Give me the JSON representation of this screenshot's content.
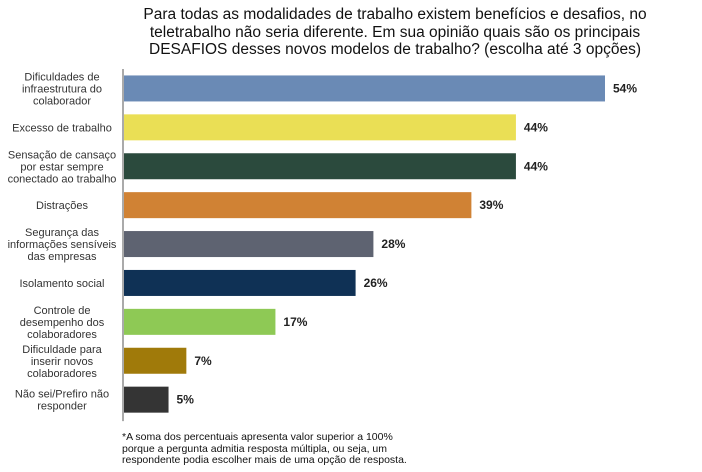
{
  "chart_data": {
    "type": "bar",
    "orientation": "horizontal",
    "title_lines": [
      "Para todas as modalidades de trabalho existem benefícios e desafios, no",
      "teletrabalho não seria diferente. Em sua opinião quais são os principais",
      "DESAFIOS desses novos modelos de trabalho? (escolha até 3 opções)"
    ],
    "categories": [
      [
        "Dificuldades de",
        "infraestrutura do",
        "colaborador"
      ],
      [
        "Excesso de trabalho"
      ],
      [
        "Sensação de cansaço",
        "por estar sempre",
        "conectado ao trabalho"
      ],
      [
        "Distrações"
      ],
      [
        "Segurança das",
        "informações sensíveis",
        "das empresas"
      ],
      [
        "Isolamento social"
      ],
      [
        "Controle de",
        "desempenho dos",
        "colaboradores"
      ],
      [
        "Dificuldade para",
        "inserir novos",
        "colaboradores"
      ],
      [
        "Não sei/Prefiro não",
        "responder"
      ]
    ],
    "values": [
      54,
      44,
      44,
      39,
      28,
      26,
      17,
      7,
      5
    ],
    "value_labels": [
      "54%",
      "44%",
      "44%",
      "39%",
      "28%",
      "26%",
      "17%",
      "7%",
      "5%"
    ],
    "colors": [
      "#6a8ab5",
      "#eadf55",
      "#2b4a3d",
      "#d08234",
      "#5e6371",
      "#0f3155",
      "#8ec955",
      "#a07a0a",
      "#343434"
    ],
    "xlim": [
      0,
      54
    ],
    "xlabel": "",
    "ylabel": "",
    "grid": false
  },
  "footnote_lines": [
    "*A soma dos percentuais apresenta valor superior a 100%",
    "porque a pergunta admitia resposta múltipla, ou seja, um",
    "respondente podia escolher mais de uma opção de resposta."
  ]
}
